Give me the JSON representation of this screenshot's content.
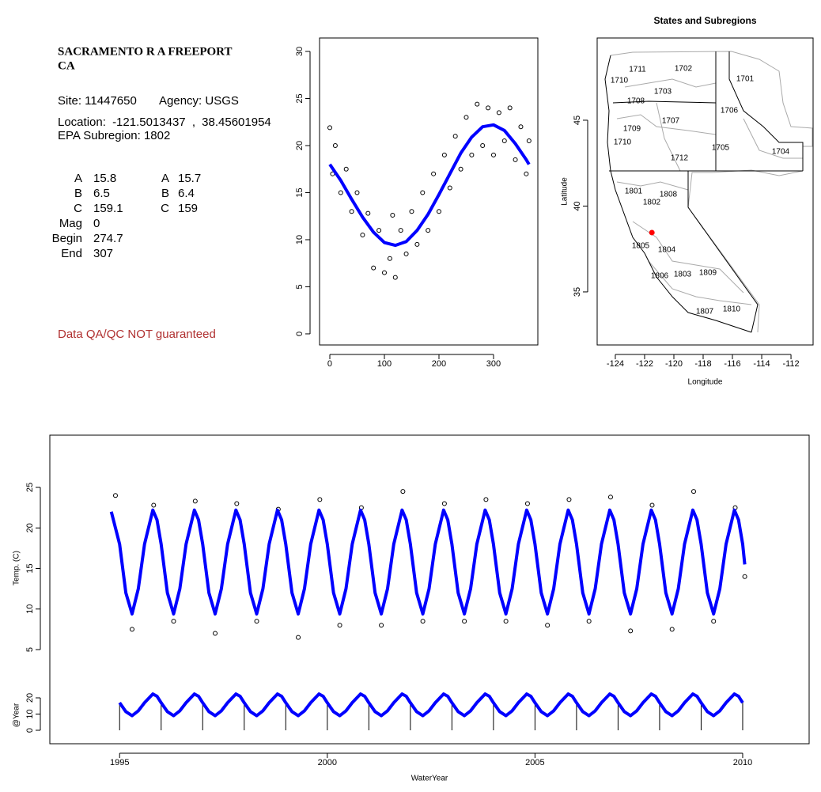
{
  "header": {
    "title": "SACRAMENTO R A FREEPORT",
    "state": "CA"
  },
  "info": {
    "site": "Site: 11447650",
    "agency": "Agency: USGS",
    "location_label": "Location:",
    "longitude": -121.5013437,
    "separator": ",",
    "latitude": 38.45601954,
    "subregion": "EPA Subregion: 1802"
  },
  "params": {
    "left": [
      {
        "label": "A",
        "value": 15.8
      },
      {
        "label": "B",
        "value": 6.5
      },
      {
        "label": "C",
        "value": 159.1
      },
      {
        "label": "Mag",
        "value": 0
      },
      {
        "label": "Begin",
        "value": 274.7
      },
      {
        "label": "End",
        "value": 307
      }
    ],
    "right": [
      {
        "label": "A",
        "value": 15.7
      },
      {
        "label": "B",
        "value": 6.4
      },
      {
        "label": "C",
        "value": 159
      }
    ]
  },
  "note": "Data QA/QC NOT guaranteed",
  "chart_data": [
    {
      "type": "scatter",
      "xlim": [
        -18.84,
        381.2
      ],
      "ylim": [
        -1.18,
        31.43
      ],
      "xticks": [
        0,
        100,
        200,
        300
      ],
      "yticks": [
        0,
        5,
        10,
        15,
        20,
        25,
        30
      ],
      "series": [
        {
          "color": "#000000",
          "marker": "circle",
          "x": [
            0,
            5,
            10,
            20,
            30,
            40,
            50,
            60,
            70,
            80,
            90,
            100,
            110,
            115,
            120,
            130,
            140,
            150,
            160,
            170,
            180,
            190,
            200,
            210,
            220,
            230,
            240,
            250,
            260,
            270,
            280,
            290,
            300,
            310,
            320,
            330,
            340,
            350,
            360,
            365
          ],
          "values": [
            21.9,
            17,
            20,
            15,
            17.5,
            13,
            15,
            10.5,
            12.8,
            7,
            11,
            6.5,
            8,
            12.6,
            6,
            11,
            8.5,
            13,
            9.5,
            15,
            11,
            17,
            13,
            19,
            15.5,
            21,
            17.5,
            23,
            19,
            24.4,
            20,
            24,
            19,
            23.5,
            20.5,
            24,
            18.5,
            22,
            17,
            20.5
          ]
        },
        {
          "color": "#0000ff",
          "marker": "line",
          "x": [
            0,
            20,
            40,
            60,
            80,
            100,
            120,
            140,
            160,
            180,
            200,
            220,
            240,
            260,
            280,
            300,
            320,
            340,
            360,
            365
          ],
          "values": [
            18.0,
            16.3,
            14.3,
            12.4,
            10.8,
            9.7,
            9.4,
            9.8,
            11.0,
            12.7,
            14.8,
            17.0,
            19.2,
            20.9,
            22.0,
            22.2,
            21.6,
            20.2,
            18.5,
            18.0
          ]
        }
      ]
    },
    {
      "type": "map",
      "title": "States and Subregions",
      "xlabel": "Longitude",
      "ylabel": "Latitude",
      "xlim": [
        -125.24,
        -110.49
      ],
      "ylim": [
        31.91,
        49.79
      ],
      "xticks": [
        -124,
        -122,
        -120,
        -118,
        -116,
        -114,
        -112
      ],
      "yticks": [
        35,
        40,
        45
      ],
      "regions": [
        "1711",
        "1702",
        "1701",
        "1710",
        "1708",
        "1703",
        "1706",
        "1707",
        "1709",
        "1710",
        "1705",
        "1704",
        "1712",
        "1801",
        "1808",
        "1802",
        "1805",
        "1804",
        "1806",
        "1803",
        "1809",
        "1807",
        "1810"
      ],
      "marker_color": "#ff0000"
    },
    {
      "type": "line",
      "xlabel": "WaterYear",
      "ylabel": "Temp. (C)",
      "y2label": "@Year",
      "xlim": [
        1993.32,
        2011.6
      ],
      "ylim": [
        -6.61,
        31.44
      ],
      "y2lim": [
        -8.29,
        181.95
      ],
      "xticks": [
        1995,
        2000,
        2005,
        2010
      ],
      "yticks": [
        5,
        10,
        15,
        20,
        25
      ],
      "y2ticks": [
        0,
        10,
        20
      ],
      "x": [
        1994.8,
        1995,
        1995.15,
        1995.3,
        1995.45,
        1995.6,
        1995.8,
        1995.9,
        1996,
        1996.15,
        1996.3,
        1996.45,
        1996.6,
        1996.8,
        1996.9,
        1997,
        1997.15,
        1997.3,
        1997.45,
        1997.6,
        1997.8,
        1997.9,
        1998,
        1998.15,
        1998.3,
        1998.45,
        1998.6,
        1998.8,
        1998.9,
        1999,
        1999.15,
        1999.3,
        1999.45,
        1999.6,
        1999.8,
        1999.9,
        2000,
        2000.15,
        2000.3,
        2000.45,
        2000.6,
        2000.8,
        2000.9,
        2001,
        2001.15,
        2001.3,
        2001.45,
        2001.6,
        2001.8,
        2001.9,
        2002,
        2002.15,
        2002.3,
        2002.45,
        2002.6,
        2002.8,
        2002.9,
        2003,
        2003.15,
        2003.3,
        2003.45,
        2003.6,
        2003.8,
        2003.9,
        2004,
        2004.15,
        2004.3,
        2004.45,
        2004.6,
        2004.8,
        2004.9,
        2005,
        2005.15,
        2005.3,
        2005.45,
        2005.6,
        2005.8,
        2005.9,
        2006,
        2006.15,
        2006.3,
        2006.45,
        2006.6,
        2006.8,
        2006.9,
        2007,
        2007.15,
        2007.3,
        2007.45,
        2007.6,
        2007.8,
        2007.9,
        2008,
        2008.15,
        2008.3,
        2008.45,
        2008.6,
        2008.8,
        2008.9,
        2009,
        2009.15,
        2009.3,
        2009.45,
        2009.6,
        2009.8,
        2009.9,
        2010,
        2010.05
      ],
      "series": [
        {
          "color": "#000000",
          "marker": "circle",
          "x": [
            1994.9,
            1995.3,
            1995.82,
            1996.3,
            1996.82,
            1997.3,
            1997.82,
            1998.3,
            1998.82,
            1999.3,
            1999.82,
            2000.3,
            2000.82,
            2001.3,
            2001.82,
            2002.3,
            2002.82,
            2003.3,
            2003.82,
            2004.3,
            2004.82,
            2005.3,
            2005.82,
            2006.3,
            2006.82,
            2007.3,
            2007.82,
            2008.3,
            2008.82,
            2009.3,
            2009.82,
            2010.05
          ],
          "values": [
            24.0,
            7.5,
            22.8,
            8.5,
            23.3,
            7.0,
            23.0,
            8.5,
            22.3,
            6.5,
            23.5,
            8.0,
            22.5,
            8.0,
            24.5,
            8.5,
            23.0,
            8.5,
            23.5,
            8.5,
            23.0,
            8.0,
            23.5,
            8.5,
            23.8,
            7.3,
            22.8,
            7.5,
            24.5,
            8.5,
            22.5,
            14.0
          ]
        },
        {
          "color": "#0000ff",
          "marker": "line",
          "values": [
            22.0,
            18.0,
            12.0,
            9.4,
            12.5,
            18.0,
            22.2,
            21.0,
            18.0,
            12.0,
            9.4,
            12.5,
            18.0,
            22.2,
            21.0,
            18.0,
            12.0,
            9.4,
            12.5,
            18.0,
            22.2,
            21.0,
            18.0,
            12.0,
            9.4,
            12.5,
            18.0,
            22.2,
            21.0,
            18.0,
            12.0,
            9.4,
            12.5,
            18.0,
            22.2,
            21.0,
            18.0,
            12.0,
            9.4,
            12.5,
            18.0,
            22.2,
            21.0,
            18.0,
            12.0,
            9.4,
            12.5,
            18.0,
            22.2,
            21.0,
            18.0,
            12.0,
            9.4,
            12.5,
            18.0,
            22.2,
            21.0,
            18.0,
            12.0,
            9.4,
            12.5,
            18.0,
            22.2,
            21.0,
            18.0,
            12.0,
            9.4,
            12.5,
            18.0,
            22.2,
            21.0,
            18.0,
            12.0,
            9.4,
            12.5,
            18.0,
            22.2,
            21.0,
            18.0,
            12.0,
            9.4,
            12.5,
            18.0,
            22.2,
            21.0,
            18.0,
            12.0,
            9.4,
            12.5,
            18.0,
            22.2,
            21.0,
            18.0,
            12.0,
            9.4,
            12.5,
            18.0,
            22.2,
            21.0,
            18.0,
            12.0,
            9.4,
            12.5,
            18.0,
            22.2,
            21.0,
            18.0,
            15.5
          ]
        },
        {
          "color": "#0000ff",
          "marker": "line",
          "axis": "y2",
          "drop_lines": true,
          "values": [
            null,
            17,
            11.5,
            9,
            12,
            17,
            22.4,
            21,
            17,
            11.5,
            9,
            12,
            17,
            22.4,
            21,
            17,
            11.5,
            9,
            12,
            17,
            22.4,
            21,
            17,
            11.5,
            9,
            12,
            17,
            22.4,
            21,
            17,
            11.5,
            9,
            12,
            17,
            22.4,
            21,
            17,
            11.5,
            9,
            12,
            17,
            22.4,
            21,
            17,
            11.5,
            9,
            12,
            17,
            22.4,
            21,
            17,
            11.5,
            9,
            12,
            17,
            22.4,
            21,
            17,
            11.5,
            9,
            12,
            17,
            22.4,
            21,
            17,
            11.5,
            9,
            12,
            17,
            22.4,
            21,
            17,
            11.5,
            9,
            12,
            17,
            22.4,
            21,
            17,
            11.5,
            9,
            12,
            17,
            22.4,
            21,
            17,
            11.5,
            9,
            12,
            17,
            22.4,
            21,
            17,
            11.5,
            9,
            12,
            17,
            22.4,
            21,
            17,
            11.5,
            9,
            12,
            17,
            22.4,
            21,
            17,
            null
          ]
        }
      ]
    }
  ]
}
